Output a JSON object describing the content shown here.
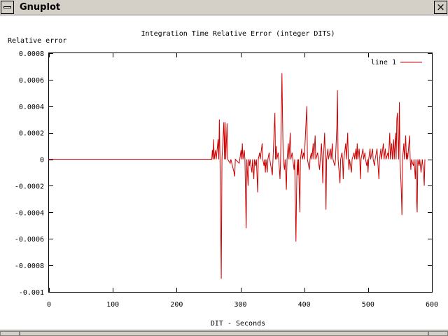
{
  "window": {
    "title": "Gnuplot",
    "close_glyph": "×"
  },
  "colors": {
    "series": "#cc0000",
    "axes": "#000000",
    "window_chrome": "#d4d0c8"
  },
  "chart_data": {
    "type": "line",
    "title": "Integration Time Relative Error (integer DITS)",
    "xlabel": "DIT - Seconds",
    "ylabel": "Relative error",
    "xlim": [
      0,
      600
    ],
    "ylim": [
      -0.001,
      0.0008
    ],
    "x_ticks": [
      0,
      100,
      200,
      300,
      400,
      500,
      600
    ],
    "x_tick_labels": [
      "0",
      "100",
      "200",
      "300",
      "400",
      "500",
      "600"
    ],
    "y_ticks": [
      0.0008,
      0.0006,
      0.0004,
      0.0002,
      0,
      -0.0002,
      -0.0004,
      -0.0006,
      -0.0008,
      -0.001
    ],
    "y_tick_labels": [
      "0.0008",
      "0.0006",
      "0.0004",
      "0.0002",
      "0",
      "-0.0002",
      "-0.0004",
      "-0.0006",
      "-0.0008",
      "-0.001"
    ],
    "grid": false,
    "legend": {
      "position": "top-right"
    },
    "series": [
      {
        "name": "line 1",
        "points": [
          [
            0,
            0
          ],
          [
            255,
            0
          ],
          [
            256,
            7e-05
          ],
          [
            257,
            0
          ],
          [
            258,
            0.00015
          ],
          [
            259,
            0
          ],
          [
            261,
            7e-05
          ],
          [
            262,
            0
          ],
          [
            265,
            0.00015
          ],
          [
            266,
            0
          ],
          [
            267,
            0.0003
          ],
          [
            268,
            0
          ],
          [
            269,
            -0.00045
          ],
          [
            270,
            -0.0009
          ],
          [
            271,
            0
          ],
          [
            274,
            0.00028
          ],
          [
            275,
            0
          ],
          [
            276,
            0.00028
          ],
          [
            277,
            0
          ],
          [
            279,
            0.00027
          ],
          [
            280,
            0
          ],
          [
            284,
            -3e-05
          ],
          [
            285,
            0
          ],
          [
            290,
            -0.0001
          ],
          [
            291,
            -0.00013
          ],
          [
            292,
            0
          ],
          [
            298,
            -3e-05
          ],
          [
            299,
            0
          ],
          [
            301,
            7e-05
          ],
          [
            302,
            0
          ],
          [
            303,
            0.00012
          ],
          [
            304,
            0
          ],
          [
            306,
            7e-05
          ],
          [
            307,
            0
          ],
          [
            308,
            -0.00027
          ],
          [
            309,
            -0.00052
          ],
          [
            310,
            0
          ],
          [
            312,
            -0.0002
          ],
          [
            313,
            0
          ],
          [
            314,
            -5e-05
          ],
          [
            315,
            0
          ],
          [
            318,
            -0.0001
          ],
          [
            319,
            0
          ],
          [
            321,
            -0.00015
          ],
          [
            322,
            0
          ],
          [
            324,
            -5e-05
          ],
          [
            325,
            0
          ],
          [
            327,
            -0.00025
          ],
          [
            328,
            0
          ],
          [
            330,
            5e-05
          ],
          [
            331,
            0
          ],
          [
            334,
            0.00012
          ],
          [
            335,
            0
          ],
          [
            337,
            -5e-05
          ],
          [
            338,
            0
          ],
          [
            339,
            -0.0001
          ],
          [
            340,
            0
          ],
          [
            342,
            -0.0001
          ],
          [
            343,
            0
          ],
          [
            345,
            5e-05
          ],
          [
            346,
            0
          ],
          [
            350,
            -0.00012
          ],
          [
            351,
            0
          ],
          [
            354,
            0.00035
          ],
          [
            355,
            0
          ],
          [
            356,
            0.0001
          ],
          [
            357,
            0
          ],
          [
            359,
            5e-05
          ],
          [
            360,
            0
          ],
          [
            362,
            -0.00015
          ],
          [
            363,
            0
          ],
          [
            365,
            0.00065
          ],
          [
            366,
            0.0003
          ],
          [
            367,
            0
          ],
          [
            369,
            -8e-05
          ],
          [
            370,
            0
          ],
          [
            372,
            -0.00023
          ],
          [
            373,
            0
          ],
          [
            375,
            0.00012
          ],
          [
            376,
            0
          ],
          [
            378,
            0.0002
          ],
          [
            379,
            0
          ],
          [
            381,
            5e-05
          ],
          [
            382,
            0
          ],
          [
            384,
            -8e-05
          ],
          [
            385,
            0
          ],
          [
            387,
            -0.00062
          ],
          [
            388,
            -0.00025
          ],
          [
            389,
            0
          ],
          [
            390,
            -0.00012
          ],
          [
            391,
            0
          ],
          [
            393,
            -0.0004
          ],
          [
            394,
            0
          ],
          [
            396,
            8e-05
          ],
          [
            397,
            0
          ],
          [
            399,
            5e-05
          ],
          [
            400,
            0
          ],
          [
            404,
            0.0004
          ],
          [
            405,
            0
          ],
          [
            408,
            -8e-05
          ],
          [
            409,
            0
          ],
          [
            411,
            5e-05
          ],
          [
            412,
            0
          ],
          [
            414,
            0.00012
          ],
          [
            415,
            0
          ],
          [
            417,
            0.00018
          ],
          [
            418,
            0
          ],
          [
            421,
            5e-05
          ],
          [
            422,
            0
          ],
          [
            424,
            -8e-05
          ],
          [
            425,
            0
          ],
          [
            427,
            0.00012
          ],
          [
            428,
            0
          ],
          [
            429,
            -0.00018
          ],
          [
            430,
            0
          ],
          [
            432,
            0.0002
          ],
          [
            433,
            0
          ],
          [
            434,
            -0.00038
          ],
          [
            435,
            0
          ],
          [
            437,
            8e-05
          ],
          [
            438,
            0
          ],
          [
            441,
            8e-05
          ],
          [
            442,
            0
          ],
          [
            444,
            0.00012
          ],
          [
            445,
            0
          ],
          [
            448,
            -5e-05
          ],
          [
            449,
            0
          ],
          [
            451,
            0.00025
          ],
          [
            452,
            0.00052
          ],
          [
            453,
            0
          ],
          [
            456,
            -0.00018
          ],
          [
            457,
            0
          ],
          [
            459,
            5e-05
          ],
          [
            460,
            0
          ],
          [
            461,
            -0.00015
          ],
          [
            462,
            0
          ],
          [
            465,
            0.00012
          ],
          [
            466,
            0
          ],
          [
            468,
            0.0002
          ],
          [
            469,
            0
          ],
          [
            470,
            -8e-05
          ],
          [
            471,
            0
          ],
          [
            474,
            -0.0001
          ],
          [
            475,
            0
          ],
          [
            478,
            5e-05
          ],
          [
            479,
            0
          ],
          [
            481,
            8e-05
          ],
          [
            482,
            0
          ],
          [
            483,
            0.00012
          ],
          [
            484,
            0
          ],
          [
            486,
            8e-05
          ],
          [
            487,
            0
          ],
          [
            488,
            -0.00015
          ],
          [
            489,
            0
          ],
          [
            492,
            8e-05
          ],
          [
            493,
            0
          ],
          [
            495,
            5e-05
          ],
          [
            496,
            0
          ],
          [
            498,
            -5e-05
          ],
          [
            499,
            0
          ],
          [
            500,
            -0.0001
          ],
          [
            501,
            0
          ],
          [
            503,
            8e-05
          ],
          [
            504,
            0
          ],
          [
            507,
            8e-05
          ],
          [
            508,
            0
          ],
          [
            510,
            -5e-05
          ],
          [
            511,
            0
          ],
          [
            514,
            8e-05
          ],
          [
            515,
            0
          ],
          [
            517,
            -0.00015
          ],
          [
            518,
            0
          ],
          [
            520,
            8e-05
          ],
          [
            521,
            0
          ],
          [
            524,
            0.00012
          ],
          [
            525,
            0
          ],
          [
            527,
            8e-05
          ],
          [
            528,
            0
          ],
          [
            531,
            5e-05
          ],
          [
            532,
            0
          ],
          [
            534,
            0.0002
          ],
          [
            535,
            0
          ],
          [
            537,
            0.00012
          ],
          [
            538,
            0
          ],
          [
            540,
            0.00015
          ],
          [
            541,
            0
          ],
          [
            543,
            0.0002
          ],
          [
            544,
            0
          ],
          [
            545,
            0.0003
          ],
          [
            546,
            0.00035
          ],
          [
            547,
            0.00015
          ],
          [
            548,
            0
          ],
          [
            549,
            0.00043
          ],
          [
            550,
            0
          ],
          [
            552,
            -0.00022
          ],
          [
            553,
            -0.00042
          ],
          [
            554,
            0
          ],
          [
            556,
            0.00012
          ],
          [
            557,
            0
          ],
          [
            559,
            0.00018
          ],
          [
            560,
            0
          ],
          [
            561,
            5e-05
          ],
          [
            562,
            0
          ],
          [
            565,
            0.00018
          ],
          [
            566,
            0
          ],
          [
            567,
            -8e-05
          ],
          [
            568,
            0
          ],
          [
            571,
            -5e-05
          ],
          [
            572,
            0
          ],
          [
            574,
            -0.00015
          ],
          [
            575,
            0
          ],
          [
            576,
            -0.0003
          ],
          [
            577,
            -0.0004
          ],
          [
            578,
            0
          ],
          [
            580,
            -5e-05
          ],
          [
            581,
            0
          ],
          [
            583,
            -0.0001
          ],
          [
            584,
            -5e-05
          ],
          [
            585,
            0
          ],
          [
            587,
            -0.0001
          ],
          [
            588,
            -0.0002
          ],
          [
            589,
            0
          ]
        ]
      }
    ]
  }
}
